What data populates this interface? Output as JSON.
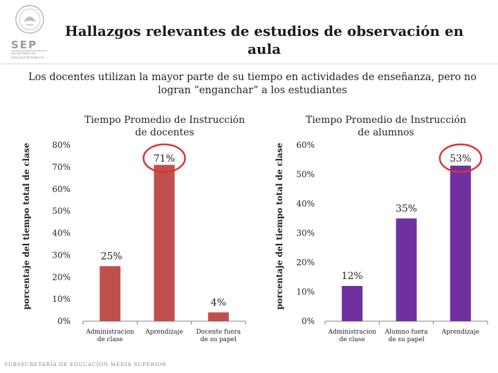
{
  "header": {
    "title": "Hallazgos relevantes de estudios de observación en aula",
    "logo_text": "SEP",
    "logo_subtext": "SECRETARÍA DE EDUCACIÓN PÚBLICA"
  },
  "subtitle": "Los docentes utilizan la mayor parte de su tiempo en actividades de enseñanza, pero no logran “enganchar” a los estudiantes",
  "footer": "SUBSECRETARÍA DE EDUCACIÓN MEDIA SUPERIOR",
  "colors": {
    "teacher_bars": "#c0504d",
    "student_bars": "#7030a0",
    "highlight_circle": "#e03030"
  },
  "chart_data": [
    {
      "type": "bar",
      "title": "Tiempo Promedio de Instrucción de docentes",
      "ylabel": "porcentaje del tiempo total de clase",
      "categories": [
        "Administracion de clase",
        "Aprendizaje",
        "Docente fuera de su papel"
      ],
      "values": [
        25,
        71,
        4
      ],
      "data_labels": [
        "25%",
        "71%",
        "4%"
      ],
      "yticks": [
        "0%",
        "10%",
        "20%",
        "30%",
        "40%",
        "50%",
        "60%",
        "70%",
        "80%"
      ],
      "ylim": [
        0,
        80
      ],
      "highlight": "Aprendizaje"
    },
    {
      "type": "bar",
      "title": "Tiempo Promedio de Instrucción de alumnos",
      "ylabel": "porcentaje del tiempo total de clase",
      "categories": [
        "Administracion de clase",
        "Alumno fuera de su papel",
        "Aprendizaje"
      ],
      "values": [
        12,
        35,
        53
      ],
      "data_labels": [
        "12%",
        "35%",
        "53%"
      ],
      "yticks": [
        "0%",
        "10%",
        "20%",
        "30%",
        "40%",
        "50%",
        "60%"
      ],
      "ylim": [
        0,
        60
      ],
      "highlight": "Aprendizaje"
    }
  ]
}
